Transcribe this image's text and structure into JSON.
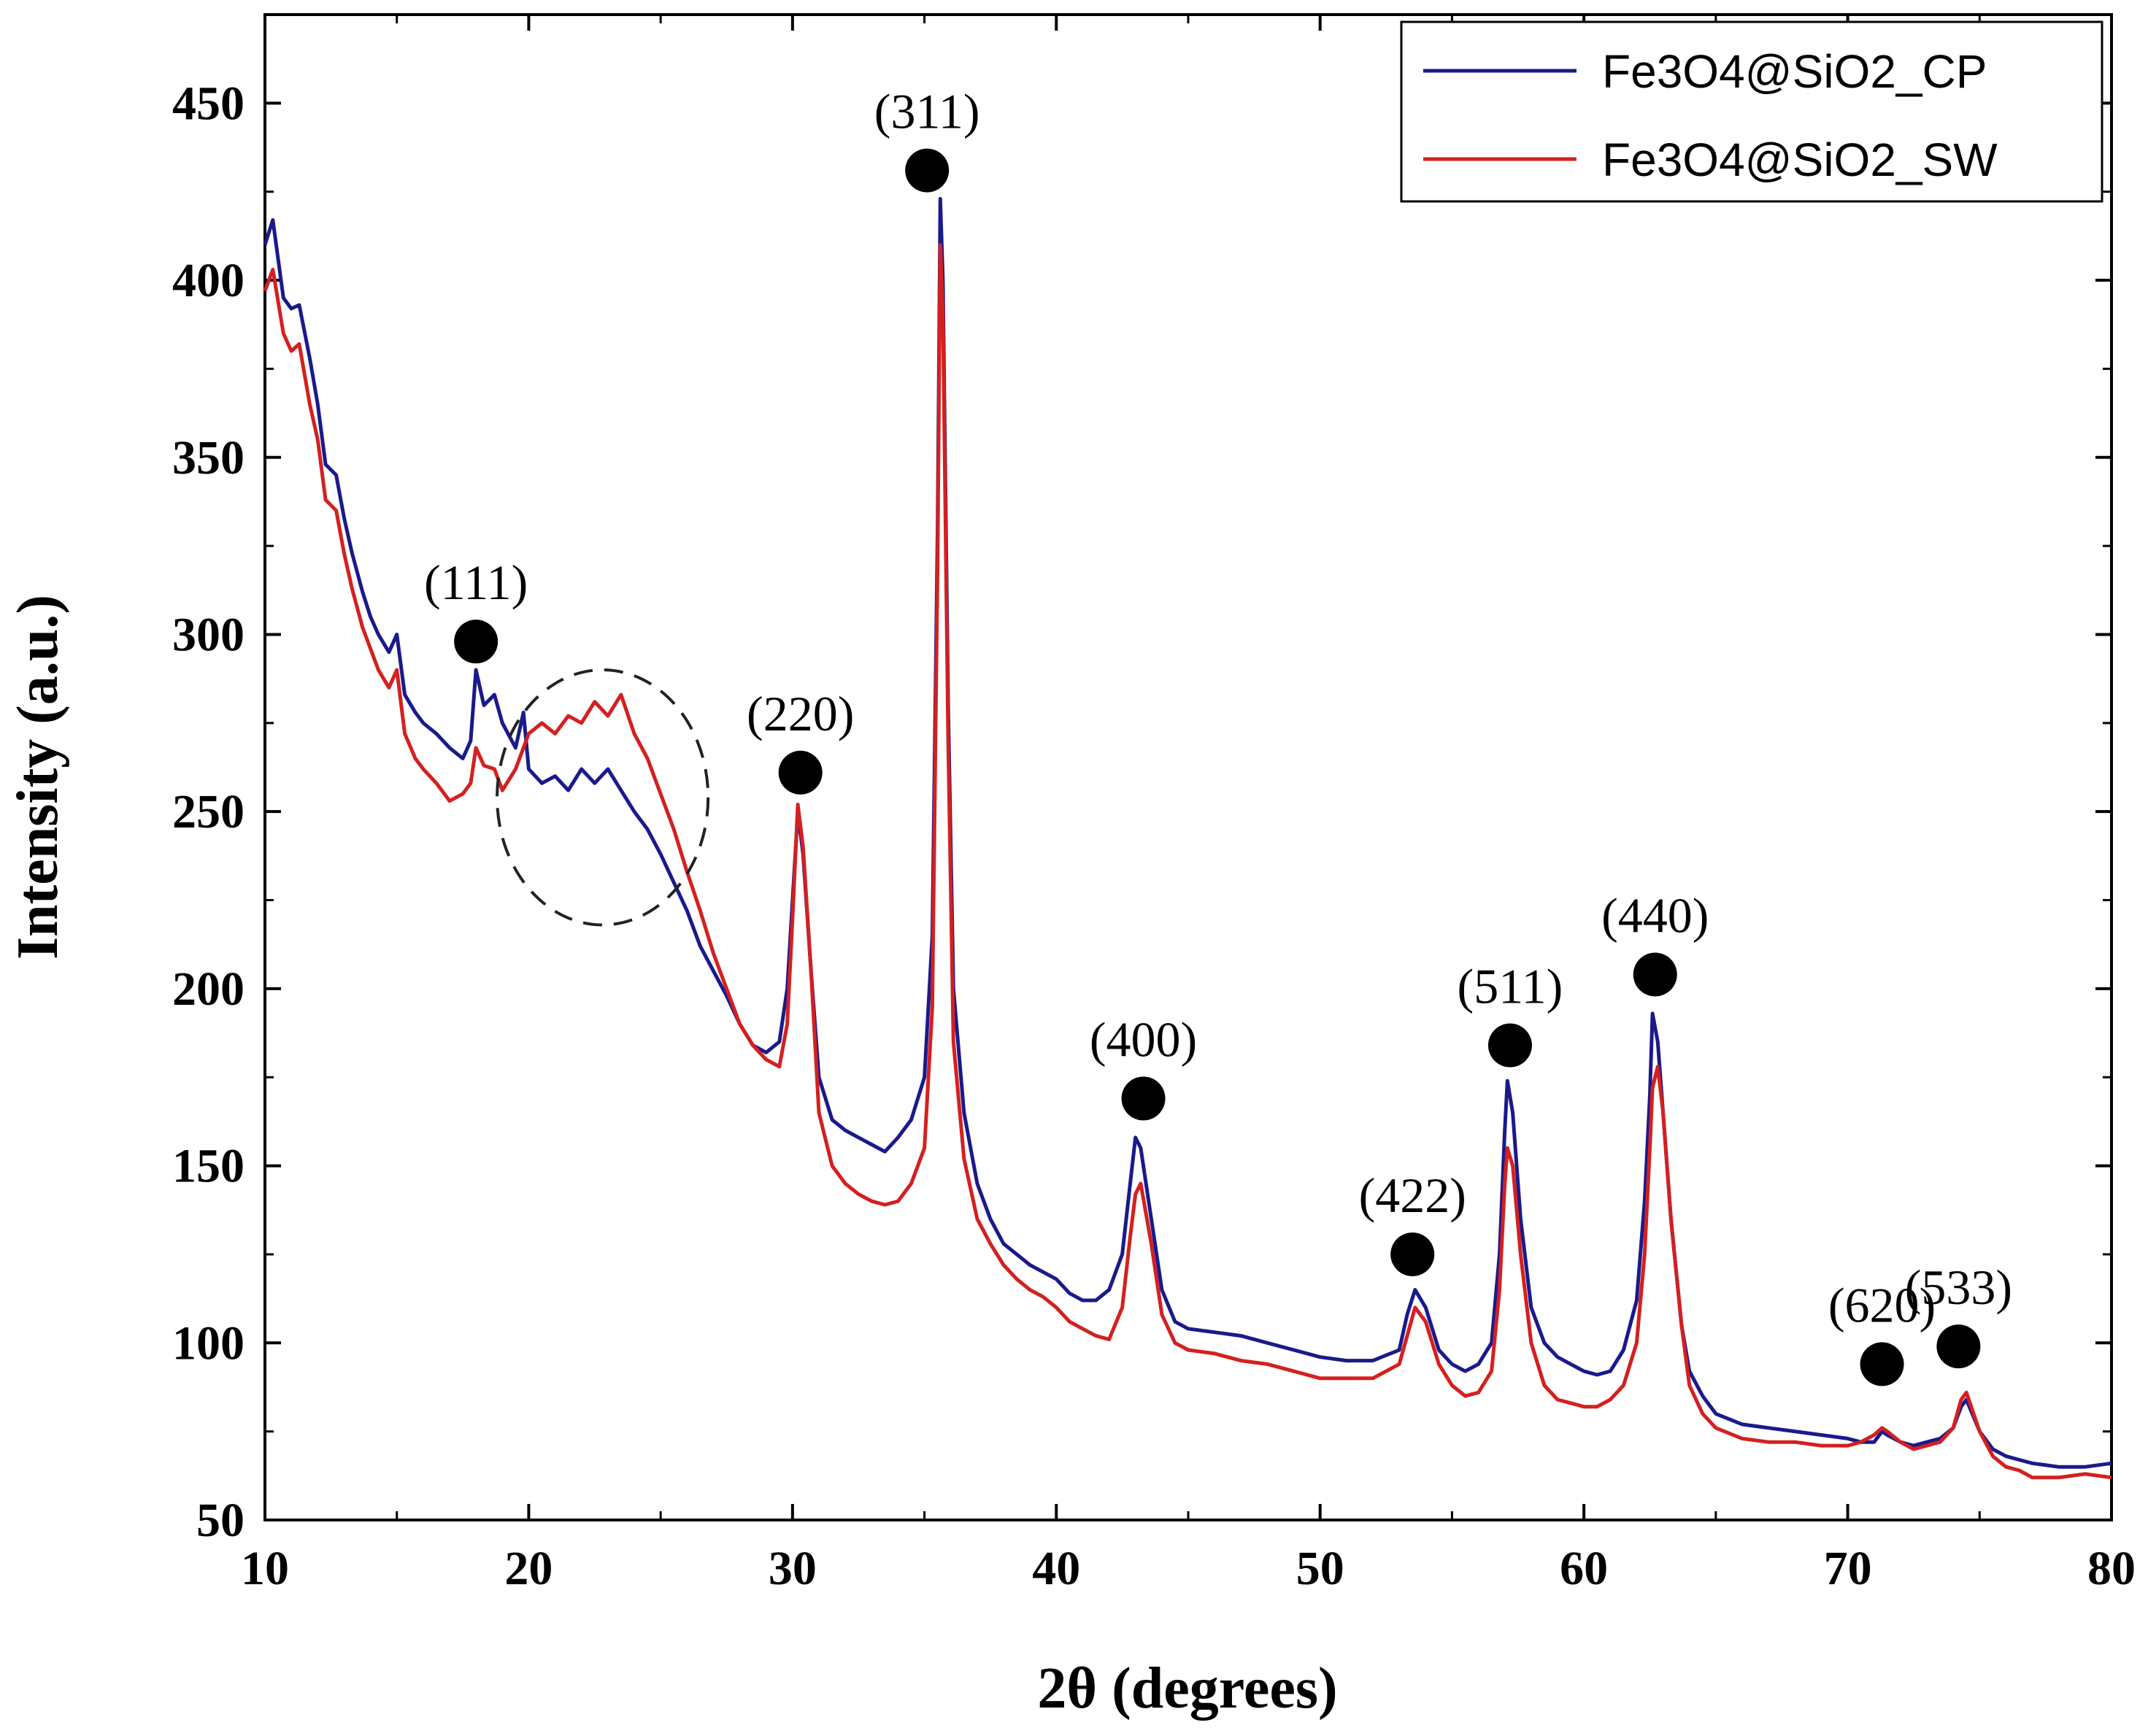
{
  "chart_data": {
    "type": "line",
    "title": "",
    "xlabel": "2θ (degrees)",
    "ylabel": "Intensity (a.u.)",
    "xlim": [
      10,
      80
    ],
    "ylim": [
      50,
      475
    ],
    "x_ticks": [
      10,
      20,
      30,
      40,
      50,
      60,
      70,
      80
    ],
    "y_ticks": [
      50,
      100,
      150,
      200,
      250,
      300,
      350,
      400,
      450
    ],
    "grid": false,
    "legend_position": "top-right",
    "series": [
      {
        "name": "Fe3O4@SiO2_CP",
        "color": "#1a1a8c",
        "points": [
          [
            10,
            410
          ],
          [
            10.3,
            417
          ],
          [
            10.7,
            395
          ],
          [
            11,
            392
          ],
          [
            11.3,
            393
          ],
          [
            11.7,
            378
          ],
          [
            12,
            365
          ],
          [
            12.3,
            348
          ],
          [
            12.7,
            345
          ],
          [
            13,
            333
          ],
          [
            13.3,
            323
          ],
          [
            13.7,
            312
          ],
          [
            14,
            305
          ],
          [
            14.3,
            300
          ],
          [
            14.7,
            295
          ],
          [
            15,
            300
          ],
          [
            15.3,
            283
          ],
          [
            15.7,
            278
          ],
          [
            16,
            275
          ],
          [
            16.5,
            272
          ],
          [
            17,
            268
          ],
          [
            17.5,
            265
          ],
          [
            17.8,
            270
          ],
          [
            18,
            290
          ],
          [
            18.3,
            280
          ],
          [
            18.7,
            283
          ],
          [
            19,
            275
          ],
          [
            19.5,
            268
          ],
          [
            19.8,
            278
          ],
          [
            20,
            262
          ],
          [
            20.5,
            258
          ],
          [
            21,
            260
          ],
          [
            21.5,
            256
          ],
          [
            22,
            262
          ],
          [
            22.5,
            258
          ],
          [
            23,
            262
          ],
          [
            23.5,
            256
          ],
          [
            24,
            250
          ],
          [
            24.5,
            245
          ],
          [
            25,
            238
          ],
          [
            25.5,
            230
          ],
          [
            26,
            222
          ],
          [
            26.5,
            212
          ],
          [
            27,
            205
          ],
          [
            27.5,
            198
          ],
          [
            28,
            190
          ],
          [
            28.5,
            184
          ],
          [
            29,
            182
          ],
          [
            29.5,
            185
          ],
          [
            29.8,
            200
          ],
          [
            30,
            225
          ],
          [
            30.2,
            250
          ],
          [
            30.4,
            238
          ],
          [
            30.7,
            205
          ],
          [
            31,
            175
          ],
          [
            31.5,
            163
          ],
          [
            32,
            160
          ],
          [
            32.5,
            158
          ],
          [
            33,
            156
          ],
          [
            33.5,
            154
          ],
          [
            34,
            158
          ],
          [
            34.5,
            163
          ],
          [
            35,
            175
          ],
          [
            35.3,
            215
          ],
          [
            35.5,
            330
          ],
          [
            35.6,
            423
          ],
          [
            35.7,
            400
          ],
          [
            35.9,
            280
          ],
          [
            36.1,
            200
          ],
          [
            36.5,
            165
          ],
          [
            37,
            145
          ],
          [
            37.5,
            135
          ],
          [
            38,
            128
          ],
          [
            38.5,
            125
          ],
          [
            39,
            122
          ],
          [
            39.5,
            120
          ],
          [
            40,
            118
          ],
          [
            40.5,
            114
          ],
          [
            41,
            112
          ],
          [
            41.5,
            112
          ],
          [
            42,
            115
          ],
          [
            42.5,
            125
          ],
          [
            42.8,
            145
          ],
          [
            43,
            158
          ],
          [
            43.2,
            155
          ],
          [
            43.6,
            135
          ],
          [
            44,
            115
          ],
          [
            44.5,
            106
          ],
          [
            45,
            104
          ],
          [
            46,
            103
          ],
          [
            47,
            102
          ],
          [
            48,
            100
          ],
          [
            49,
            98
          ],
          [
            50,
            96
          ],
          [
            51,
            95
          ],
          [
            52,
            95
          ],
          [
            53,
            98
          ],
          [
            53.3,
            108
          ],
          [
            53.6,
            115
          ],
          [
            54,
            110
          ],
          [
            54.5,
            98
          ],
          [
            55,
            94
          ],
          [
            55.5,
            92
          ],
          [
            56,
            94
          ],
          [
            56.5,
            100
          ],
          [
            56.8,
            125
          ],
          [
            57,
            160
          ],
          [
            57.1,
            174
          ],
          [
            57.3,
            165
          ],
          [
            57.6,
            135
          ],
          [
            58,
            110
          ],
          [
            58.5,
            100
          ],
          [
            59,
            96
          ],
          [
            59.5,
            94
          ],
          [
            60,
            92
          ],
          [
            60.5,
            91
          ],
          [
            61,
            92
          ],
          [
            61.5,
            98
          ],
          [
            62,
            112
          ],
          [
            62.3,
            140
          ],
          [
            62.5,
            170
          ],
          [
            62.6,
            193
          ],
          [
            62.8,
            185
          ],
          [
            63,
            165
          ],
          [
            63.3,
            135
          ],
          [
            63.7,
            105
          ],
          [
            64,
            92
          ],
          [
            64.5,
            85
          ],
          [
            65,
            80
          ],
          [
            66,
            77
          ],
          [
            67,
            76
          ],
          [
            68,
            75
          ],
          [
            69,
            74
          ],
          [
            70,
            73
          ],
          [
            70.5,
            72
          ],
          [
            71,
            72
          ],
          [
            71.3,
            75
          ],
          [
            71.5,
            74
          ],
          [
            72,
            72
          ],
          [
            72.5,
            71
          ],
          [
            73,
            72
          ],
          [
            73.5,
            73
          ],
          [
            74,
            76
          ],
          [
            74.3,
            82
          ],
          [
            74.5,
            84
          ],
          [
            75,
            75
          ],
          [
            75.5,
            70
          ],
          [
            76,
            68
          ],
          [
            76.5,
            67
          ],
          [
            77,
            66
          ],
          [
            78,
            65
          ],
          [
            79,
            65
          ],
          [
            80,
            66
          ]
        ]
      },
      {
        "name": "Fe3O4@SiO2_SW",
        "color": "#d42020",
        "points": [
          [
            10,
            397
          ],
          [
            10.3,
            403
          ],
          [
            10.7,
            385
          ],
          [
            11,
            380
          ],
          [
            11.3,
            382
          ],
          [
            11.7,
            365
          ],
          [
            12,
            355
          ],
          [
            12.3,
            338
          ],
          [
            12.7,
            335
          ],
          [
            13,
            323
          ],
          [
            13.3,
            313
          ],
          [
            13.7,
            302
          ],
          [
            14,
            296
          ],
          [
            14.3,
            290
          ],
          [
            14.7,
            285
          ],
          [
            15,
            290
          ],
          [
            15.3,
            272
          ],
          [
            15.7,
            265
          ],
          [
            16,
            262
          ],
          [
            16.5,
            258
          ],
          [
            17,
            253
          ],
          [
            17.5,
            255
          ],
          [
            17.8,
            258
          ],
          [
            18,
            268
          ],
          [
            18.3,
            263
          ],
          [
            18.7,
            262
          ],
          [
            19,
            256
          ],
          [
            19.5,
            262
          ],
          [
            19.8,
            268
          ],
          [
            20,
            272
          ],
          [
            20.5,
            275
          ],
          [
            21,
            272
          ],
          [
            21.5,
            277
          ],
          [
            22,
            275
          ],
          [
            22.5,
            281
          ],
          [
            23,
            277
          ],
          [
            23.5,
            283
          ],
          [
            24,
            272
          ],
          [
            24.5,
            265
          ],
          [
            25,
            255
          ],
          [
            25.5,
            245
          ],
          [
            26,
            233
          ],
          [
            26.5,
            222
          ],
          [
            27,
            210
          ],
          [
            27.5,
            200
          ],
          [
            28,
            190
          ],
          [
            28.5,
            184
          ],
          [
            29,
            180
          ],
          [
            29.5,
            178
          ],
          [
            29.8,
            190
          ],
          [
            30,
            220
          ],
          [
            30.2,
            252
          ],
          [
            30.4,
            240
          ],
          [
            30.7,
            205
          ],
          [
            31,
            165
          ],
          [
            31.5,
            150
          ],
          [
            32,
            145
          ],
          [
            32.5,
            142
          ],
          [
            33,
            140
          ],
          [
            33.5,
            139
          ],
          [
            34,
            140
          ],
          [
            34.5,
            145
          ],
          [
            35,
            155
          ],
          [
            35.3,
            195
          ],
          [
            35.5,
            320
          ],
          [
            35.6,
            410
          ],
          [
            35.7,
            390
          ],
          [
            35.9,
            270
          ],
          [
            36.1,
            185
          ],
          [
            36.5,
            152
          ],
          [
            37,
            135
          ],
          [
            37.5,
            128
          ],
          [
            38,
            122
          ],
          [
            38.5,
            118
          ],
          [
            39,
            115
          ],
          [
            39.5,
            113
          ],
          [
            40,
            110
          ],
          [
            40.5,
            106
          ],
          [
            41,
            104
          ],
          [
            41.5,
            102
          ],
          [
            42,
            101
          ],
          [
            42.5,
            110
          ],
          [
            42.8,
            130
          ],
          [
            43,
            142
          ],
          [
            43.2,
            145
          ],
          [
            43.6,
            128
          ],
          [
            44,
            108
          ],
          [
            44.5,
            100
          ],
          [
            45,
            98
          ],
          [
            46,
            97
          ],
          [
            47,
            95
          ],
          [
            48,
            94
          ],
          [
            49,
            92
          ],
          [
            50,
            90
          ],
          [
            51,
            90
          ],
          [
            52,
            90
          ],
          [
            53,
            94
          ],
          [
            53.3,
            102
          ],
          [
            53.6,
            110
          ],
          [
            54,
            106
          ],
          [
            54.5,
            94
          ],
          [
            55,
            88
          ],
          [
            55.5,
            85
          ],
          [
            56,
            86
          ],
          [
            56.5,
            92
          ],
          [
            56.8,
            115
          ],
          [
            57,
            145
          ],
          [
            57.1,
            155
          ],
          [
            57.3,
            150
          ],
          [
            57.6,
            125
          ],
          [
            58,
            100
          ],
          [
            58.5,
            88
          ],
          [
            59,
            84
          ],
          [
            59.5,
            83
          ],
          [
            60,
            82
          ],
          [
            60.5,
            82
          ],
          [
            61,
            84
          ],
          [
            61.5,
            88
          ],
          [
            62,
            100
          ],
          [
            62.3,
            125
          ],
          [
            62.5,
            155
          ],
          [
            62.6,
            172
          ],
          [
            62.8,
            178
          ],
          [
            63,
            165
          ],
          [
            63.3,
            135
          ],
          [
            63.7,
            105
          ],
          [
            64,
            88
          ],
          [
            64.5,
            80
          ],
          [
            65,
            76
          ],
          [
            66,
            73
          ],
          [
            67,
            72
          ],
          [
            68,
            72
          ],
          [
            69,
            71
          ],
          [
            70,
            71
          ],
          [
            70.5,
            72
          ],
          [
            71,
            74
          ],
          [
            71.3,
            76
          ],
          [
            71.5,
            75
          ],
          [
            72,
            72
          ],
          [
            72.5,
            70
          ],
          [
            73,
            71
          ],
          [
            73.5,
            72
          ],
          [
            74,
            76
          ],
          [
            74.3,
            84
          ],
          [
            74.5,
            86
          ],
          [
            75,
            75
          ],
          [
            75.5,
            68
          ],
          [
            76,
            65
          ],
          [
            76.5,
            64
          ],
          [
            77,
            62
          ],
          [
            78,
            62
          ],
          [
            79,
            63
          ],
          [
            80,
            62
          ]
        ]
      }
    ],
    "annotations": [
      {
        "label": "(111)",
        "x": 18.0,
        "y": 298
      },
      {
        "label": "(220)",
        "x": 30.3,
        "y": 261
      },
      {
        "label": "(311)",
        "x": 35.1,
        "y": 431
      },
      {
        "label": "(400)",
        "x": 43.3,
        "y": 169
      },
      {
        "label": "(422)",
        "x": 53.5,
        "y": 125
      },
      {
        "label": "(511)",
        "x": 57.2,
        "y": 184
      },
      {
        "label": "(440)",
        "x": 62.7,
        "y": 204
      },
      {
        "label": "(620)",
        "x": 71.3,
        "y": 94
      },
      {
        "label": "(533)",
        "x": 74.2,
        "y": 99
      }
    ],
    "highlight_region": {
      "x_center": 22.8,
      "y_center": 254,
      "x_radius": 4.0,
      "y_radius": 36,
      "style": "dashed-ellipse"
    }
  }
}
